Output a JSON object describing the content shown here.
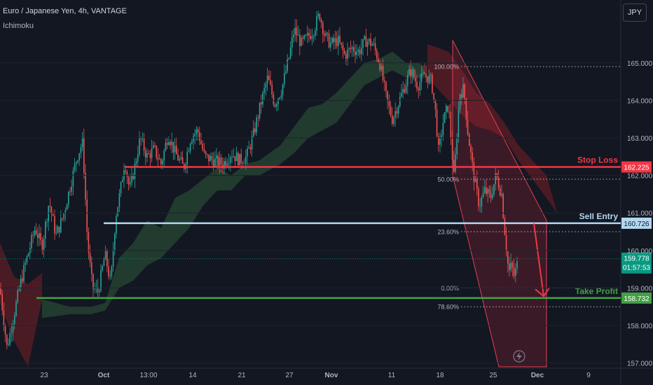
{
  "header": {
    "title": "Euro / Japanese Yen, 4h, VANTAGE",
    "indicator": "Ichimoku",
    "currency_button": "JPY"
  },
  "colors": {
    "background": "#131722",
    "bull": "#26a69a",
    "bear": "#ef5350",
    "stop_loss": "#f23645",
    "sell_entry": "#b2d8f0",
    "take_profit": "#43a047",
    "price_tag": "#089981",
    "channel": "#b2243a"
  },
  "chart_data": {
    "type": "candlestick",
    "y_range": [
      156.9,
      166.6
    ],
    "y_ticks": [
      157.0,
      158.0,
      159.0,
      160.0,
      161.0,
      162.0,
      163.0,
      164.0,
      165.0
    ],
    "y_tick_labels": [
      "157.000",
      "158.000",
      "159.000",
      "160.000",
      "161.000",
      "162.000",
      "163.000",
      "164.000",
      "165.000"
    ],
    "x_labels": [
      "23",
      "Oct",
      "13:00",
      "14",
      "21",
      "27",
      "Nov",
      "11",
      "18",
      "25",
      "Dec",
      "9"
    ],
    "x_label_bold": [
      false,
      true,
      false,
      false,
      false,
      false,
      true,
      false,
      false,
      false,
      true,
      false
    ],
    "price_path": [
      [
        0,
        159.0
      ],
      [
        10,
        157.4
      ],
      [
        20,
        158.3
      ],
      [
        30,
        159.2
      ],
      [
        40,
        159.9
      ],
      [
        50,
        160.6
      ],
      [
        60,
        160.1
      ],
      [
        70,
        161.3
      ],
      [
        80,
        160.4
      ],
      [
        90,
        160.9
      ],
      [
        100,
        161.7
      ],
      [
        110,
        162.5
      ],
      [
        118,
        162.9
      ],
      [
        125,
        160.2
      ],
      [
        132,
        159.0
      ],
      [
        140,
        158.9
      ],
      [
        150,
        159.9
      ],
      [
        158,
        159.1
      ],
      [
        165,
        160.9
      ],
      [
        172,
        161.6
      ],
      [
        178,
        162.4
      ],
      [
        185,
        161.6
      ],
      [
        192,
        162.2
      ],
      [
        200,
        163.0
      ],
      [
        210,
        162.5
      ],
      [
        220,
        162.7
      ],
      [
        230,
        162.3
      ],
      [
        240,
        163.1
      ],
      [
        250,
        162.6
      ],
      [
        262,
        162.2
      ],
      [
        272,
        163.0
      ],
      [
        282,
        163.2
      ],
      [
        292,
        162.5
      ],
      [
        305,
        162.4
      ],
      [
        318,
        162.3
      ],
      [
        330,
        162.6
      ],
      [
        342,
        162.4
      ],
      [
        352,
        162.5
      ],
      [
        362,
        163.1
      ],
      [
        372,
        163.9
      ],
      [
        382,
        164.6
      ],
      [
        392,
        163.9
      ],
      [
        402,
        164.3
      ],
      [
        412,
        165.1
      ],
      [
        420,
        165.9
      ],
      [
        430,
        165.5
      ],
      [
        440,
        165.7
      ],
      [
        448,
        165.9
      ],
      [
        456,
        166.3
      ],
      [
        464,
        165.7
      ],
      [
        472,
        165.5
      ],
      [
        482,
        165.6
      ],
      [
        492,
        165.2
      ],
      [
        502,
        165.4
      ],
      [
        512,
        165.3
      ],
      [
        522,
        165.6
      ],
      [
        532,
        165.5
      ],
      [
        542,
        165.0
      ],
      [
        552,
        164.0
      ],
      [
        560,
        163.5
      ],
      [
        568,
        163.9
      ],
      [
        578,
        164.4
      ],
      [
        586,
        164.8
      ],
      [
        596,
        164.4
      ],
      [
        606,
        164.7
      ],
      [
        616,
        164.5
      ],
      [
        622,
        163.6
      ],
      [
        626,
        162.6
      ],
      [
        632,
        163.4
      ],
      [
        640,
        163.9
      ],
      [
        648,
        161.9
      ],
      [
        656,
        164.2
      ],
      [
        662,
        164.3
      ],
      [
        668,
        163.1
      ],
      [
        676,
        162.0
      ],
      [
        684,
        161.2
      ],
      [
        692,
        161.6
      ],
      [
        700,
        161.4
      ],
      [
        708,
        162.0
      ],
      [
        716,
        161.5
      ],
      [
        720,
        160.6
      ],
      [
        726,
        159.4
      ],
      [
        730,
        159.6
      ],
      [
        734,
        159.3
      ],
      [
        740,
        159.78
      ]
    ],
    "cloud_green_top": [
      [
        60,
        158.7
      ],
      [
        100,
        158.5
      ],
      [
        130,
        158.5
      ],
      [
        150,
        158.6
      ],
      [
        170,
        159.8
      ],
      [
        190,
        160.2
      ],
      [
        210,
        160.8
      ],
      [
        230,
        160.6
      ],
      [
        250,
        161.4
      ],
      [
        270,
        161.6
      ],
      [
        290,
        161.9
      ],
      [
        310,
        162.2
      ],
      [
        330,
        162.0
      ],
      [
        350,
        162.3
      ],
      [
        370,
        162.4
      ],
      [
        400,
        162.8
      ],
      [
        420,
        163.3
      ],
      [
        440,
        163.8
      ],
      [
        460,
        163.9
      ],
      [
        480,
        164.2
      ],
      [
        500,
        164.6
      ],
      [
        520,
        165.0
      ],
      [
        540,
        165.1
      ],
      [
        560,
        165.3
      ],
      [
        580,
        165.0
      ],
      [
        600,
        165.0
      ],
      [
        610,
        164.6
      ]
    ],
    "cloud_green_bottom": [
      [
        60,
        158.2
      ],
      [
        100,
        158.3
      ],
      [
        130,
        158.3
      ],
      [
        150,
        158.4
      ],
      [
        170,
        159.0
      ],
      [
        190,
        159.2
      ],
      [
        210,
        159.6
      ],
      [
        230,
        159.8
      ],
      [
        250,
        160.2
      ],
      [
        270,
        160.6
      ],
      [
        290,
        161.2
      ],
      [
        310,
        161.6
      ],
      [
        330,
        161.6
      ],
      [
        350,
        162.0
      ],
      [
        370,
        162.0
      ],
      [
        400,
        162.3
      ],
      [
        420,
        162.6
      ],
      [
        440,
        163.0
      ],
      [
        460,
        163.2
      ],
      [
        480,
        163.4
      ],
      [
        500,
        163.9
      ],
      [
        520,
        164.4
      ],
      [
        540,
        164.6
      ],
      [
        560,
        164.8
      ],
      [
        580,
        164.6
      ],
      [
        600,
        164.6
      ],
      [
        610,
        164.6
      ]
    ],
    "cloud_red_top": [
      [
        0,
        160.2
      ],
      [
        20,
        159.3
      ],
      [
        40,
        159.1
      ],
      [
        60,
        159.4
      ],
      [
        610,
        165.5
      ],
      [
        640,
        165.3
      ],
      [
        660,
        164.8
      ],
      [
        680,
        164.2
      ],
      [
        700,
        163.9
      ],
      [
        720,
        163.4
      ],
      [
        740,
        162.8
      ],
      [
        760,
        162.4
      ],
      [
        780,
        162.0
      ],
      [
        795,
        161.0
      ]
    ],
    "cloud_red_bottom": [
      [
        0,
        158.6
      ],
      [
        20,
        157.6
      ],
      [
        40,
        156.9
      ],
      [
        60,
        158.7
      ],
      [
        610,
        164.6
      ],
      [
        640,
        164.0
      ],
      [
        660,
        163.6
      ],
      [
        680,
        163.3
      ],
      [
        700,
        163.2
      ],
      [
        720,
        163.0
      ],
      [
        740,
        162.4
      ],
      [
        760,
        161.9
      ],
      [
        780,
        161.4
      ],
      [
        795,
        161.0
      ]
    ],
    "channel_polygon": [
      [
        646,
        165.6
      ],
      [
        780,
        160.8
      ],
      [
        780,
        156.9
      ],
      [
        712,
        156.9
      ],
      [
        646,
        162.0
      ]
    ],
    "fib_levels": [
      {
        "label": "100.00%",
        "price": 164.9
      },
      {
        "label": "50.00%",
        "price": 161.9
      },
      {
        "label": "23.60%",
        "price": 160.5
      },
      {
        "label": "0.00%",
        "price": 159.0
      },
      {
        "label": "78.60%",
        "price": 158.5
      }
    ],
    "trade_levels": [
      {
        "label": "Stop Loss",
        "price": 162.225,
        "price_label": "162.225",
        "color": "#f23645"
      },
      {
        "label": "Sell Entry",
        "price": 160.726,
        "price_label": "160.726",
        "color": "#b2d8f0"
      },
      {
        "label": "Take Profit",
        "price": 158.732,
        "price_label": "158.732",
        "color": "#43a047"
      }
    ],
    "current_price": {
      "price": 159.778,
      "price_label": "159.778",
      "countdown": "01:57:53"
    }
  }
}
